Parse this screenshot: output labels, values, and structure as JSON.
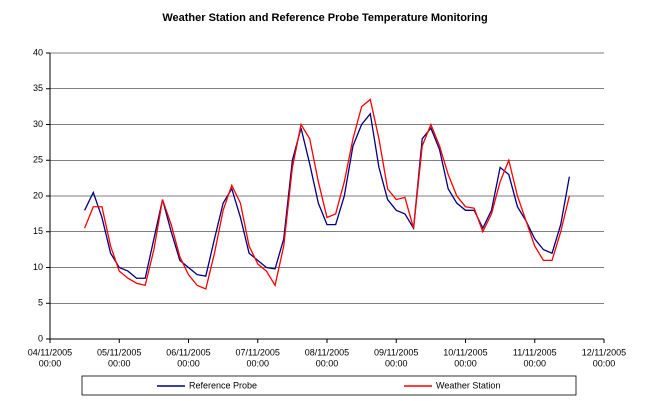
{
  "chart_data": {
    "type": "line",
    "title": "Weather Station and Reference Probe Temperature Monitoring",
    "x": [
      "2005-11-04T12:00",
      "2005-11-04T15:00",
      "2005-11-04T18:00",
      "2005-11-04T21:00",
      "2005-11-05T00:00",
      "2005-11-05T03:00",
      "2005-11-05T06:00",
      "2005-11-05T09:00",
      "2005-11-05T12:00",
      "2005-11-05T15:00",
      "2005-11-05T18:00",
      "2005-11-05T21:00",
      "2005-11-06T00:00",
      "2005-11-06T03:00",
      "2005-11-06T06:00",
      "2005-11-06T09:00",
      "2005-11-06T12:00",
      "2005-11-06T15:00",
      "2005-11-06T18:00",
      "2005-11-06T21:00",
      "2005-11-07T00:00",
      "2005-11-07T03:00",
      "2005-11-07T06:00",
      "2005-11-07T09:00",
      "2005-11-07T12:00",
      "2005-11-07T15:00",
      "2005-11-07T18:00",
      "2005-11-07T21:00",
      "2005-11-08T00:00",
      "2005-11-08T03:00",
      "2005-11-08T06:00",
      "2005-11-08T09:00",
      "2005-11-08T12:00",
      "2005-11-08T15:00",
      "2005-11-08T18:00",
      "2005-11-08T21:00",
      "2005-11-09T00:00",
      "2005-11-09T03:00",
      "2005-11-09T06:00",
      "2005-11-09T09:00",
      "2005-11-09T12:00",
      "2005-11-09T15:00",
      "2005-11-09T18:00",
      "2005-11-09T21:00",
      "2005-11-10T00:00",
      "2005-11-10T03:00",
      "2005-11-10T06:00",
      "2005-11-10T09:00",
      "2005-11-10T12:00",
      "2005-11-10T15:00",
      "2005-11-10T18:00",
      "2005-11-10T21:00",
      "2005-11-11T00:00",
      "2005-11-11T03:00",
      "2005-11-11T06:00",
      "2005-11-11T09:00",
      "2005-11-11T12:00"
    ],
    "series": [
      {
        "name": "Reference Probe",
        "color": "#000080",
        "values": [
          18,
          20.5,
          17,
          12,
          10,
          9.5,
          8.5,
          8.5,
          14,
          19.5,
          15,
          11,
          10,
          9,
          8.8,
          14,
          19,
          21,
          17,
          12,
          11,
          10,
          9.8,
          14,
          25,
          29.5,
          24.5,
          19,
          16,
          16,
          20,
          27,
          30,
          31.5,
          24,
          19.5,
          18,
          17.5,
          15.5,
          28,
          29.5,
          26.5,
          21,
          19,
          18,
          18,
          15.5,
          18,
          24,
          23,
          18.5,
          16.5,
          14,
          12.5,
          12,
          16,
          22.7
        ]
      },
      {
        "name": "Weather Station",
        "color": "#ff0000",
        "values": [
          15.5,
          18.5,
          18.5,
          13,
          9.5,
          8.5,
          7.8,
          7.5,
          12.5,
          19.5,
          16,
          11.5,
          9,
          7.5,
          7,
          12,
          18,
          21.5,
          19,
          13,
          10.5,
          9.5,
          7.5,
          13,
          24,
          30,
          28,
          22,
          17,
          17.5,
          22,
          28,
          32.5,
          33.5,
          28,
          21,
          19.5,
          19.8,
          15.5,
          27,
          30,
          27,
          23,
          20,
          18.5,
          18.3,
          15,
          17.5,
          22,
          25,
          20,
          16.5,
          13,
          11,
          11,
          15,
          20
        ]
      }
    ],
    "xlim": [
      "2005-11-04T00:00",
      "2005-11-12T00:00"
    ],
    "xticks": [
      {
        "value": "2005-11-04T00:00",
        "label": [
          "04/11/2005",
          "00:00"
        ]
      },
      {
        "value": "2005-11-05T00:00",
        "label": [
          "05/11/2005",
          "00:00"
        ]
      },
      {
        "value": "2005-11-06T00:00",
        "label": [
          "06/11/2005",
          "00:00"
        ]
      },
      {
        "value": "2005-11-07T00:00",
        "label": [
          "07/11/2005",
          "00:00"
        ]
      },
      {
        "value": "2005-11-08T00:00",
        "label": [
          "08/11/2005",
          "00:00"
        ]
      },
      {
        "value": "2005-11-09T00:00",
        "label": [
          "09/11/2005",
          "00:00"
        ]
      },
      {
        "value": "2005-11-10T00:00",
        "label": [
          "10/11/2005",
          "00:00"
        ]
      },
      {
        "value": "2005-11-11T00:00",
        "label": [
          "11/11/2005",
          "00:00"
        ]
      },
      {
        "value": "2005-11-12T00:00",
        "label": [
          "12/11/2005",
          "00:00"
        ]
      }
    ],
    "ylim": [
      0,
      40
    ],
    "yticks": [
      0,
      5,
      10,
      15,
      20,
      25,
      30,
      35,
      40
    ],
    "grid": true,
    "legend": "bottom"
  }
}
